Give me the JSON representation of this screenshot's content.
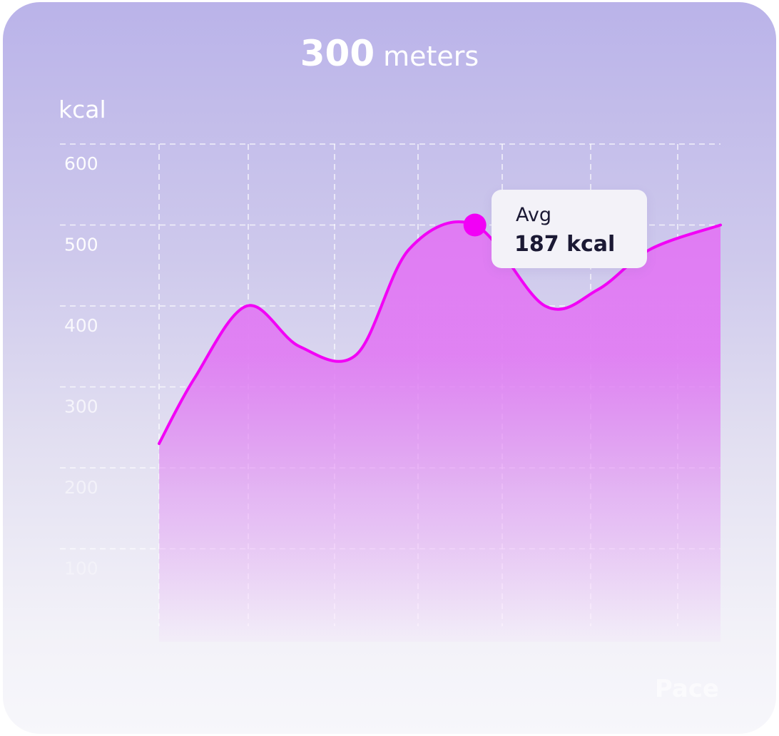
{
  "header": {
    "distance_value": "300",
    "distance_unit": "meters"
  },
  "tooltip": {
    "label": "Avg",
    "value": "187 kcal"
  },
  "colors": {
    "line": "#f200f6",
    "point": "#f200f6",
    "grid": "#ffffff",
    "fill_top": "#e07cf3"
  },
  "chart_data": {
    "type": "area",
    "ylabel": "kcal",
    "xlabel": "Pace",
    "ylim": [
      0,
      600
    ],
    "yticks": [
      100,
      200,
      300,
      400,
      500,
      600
    ],
    "grid": true,
    "x": [
      0,
      0.4,
      1.0,
      1.6,
      2.25,
      2.85,
      3.6,
      4.4,
      5.0,
      5.6,
      6.4
    ],
    "y": [
      230,
      310,
      400,
      350,
      340,
      470,
      500,
      400,
      420,
      470,
      500
    ],
    "highlight": {
      "x": 3.6,
      "y": 500
    }
  }
}
